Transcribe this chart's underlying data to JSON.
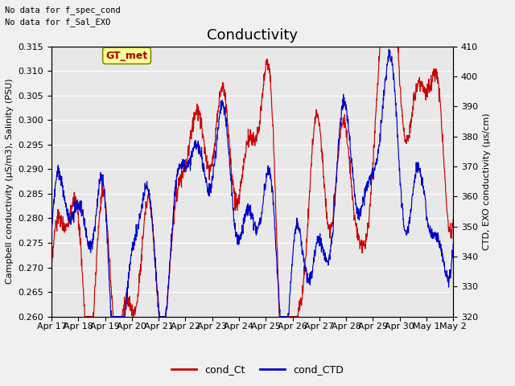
{
  "title": "Conductivity",
  "text_top_left_line1": "No data for f_spec_cond",
  "text_top_left_line2": "No data for f_Sal_EXO",
  "annotation_box": "GT_met",
  "xlabel_ticks": [
    "Apr 17",
    "Apr 18",
    "Apr 19",
    "Apr 20",
    "Apr 21",
    "Apr 22",
    "Apr 23",
    "Apr 24",
    "Apr 25",
    "Apr 26",
    "Apr 27",
    "Apr 28",
    "Apr 29",
    "Apr 30",
    "May 1",
    "May 2"
  ],
  "ylabel_left": "Campbell conductivity (μS/m3), Salinity (PSU)",
  "ylabel_right": "CTD, EXO conductivity (μs/cm)",
  "ylim_left": [
    0.26,
    0.315
  ],
  "ylim_right": [
    320,
    410
  ],
  "yticks_left": [
    0.26,
    0.265,
    0.27,
    0.275,
    0.28,
    0.285,
    0.29,
    0.295,
    0.3,
    0.305,
    0.31,
    0.315
  ],
  "yticks_right": [
    320,
    330,
    340,
    350,
    360,
    370,
    380,
    390,
    400,
    410
  ],
  "legend_labels": [
    "cond_Ct",
    "cond_CTD"
  ],
  "fig_bg_color": "#f0f0f0",
  "plot_bg_color": "#e8e8e8",
  "grid_color": "#ffffff",
  "red_color": "#cc0000",
  "blue_color": "#0000cc",
  "title_fontsize": 13,
  "axis_label_fontsize": 8,
  "tick_fontsize": 8,
  "legend_fontsize": 9,
  "annot_fontsize": 9,
  "n_points": 1500
}
